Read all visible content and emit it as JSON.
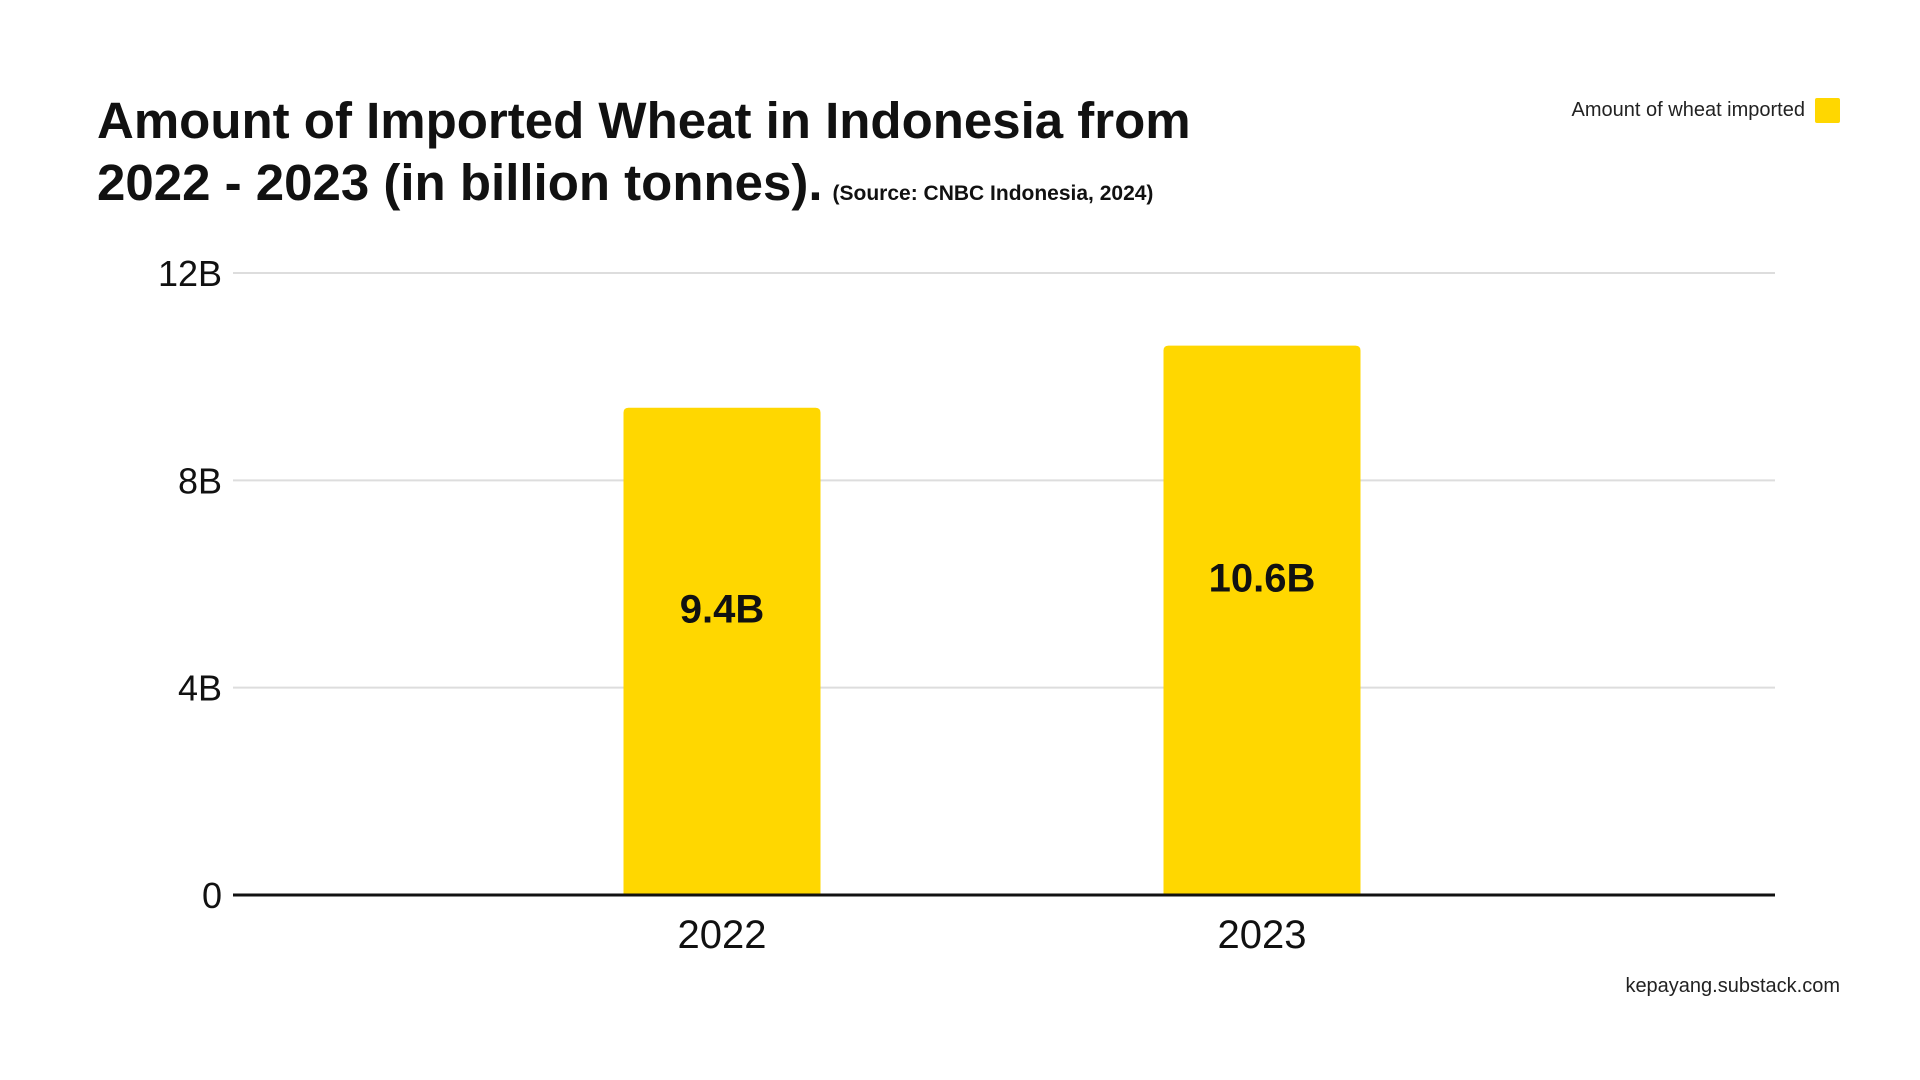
{
  "chart_data": {
    "type": "bar",
    "title": "Amount of Imported Wheat in Indonesia from 2022 - 2023 (in billion tonnes).",
    "title_line1": "Amount of Imported Wheat in Indonesia from",
    "title_line2": "2022 - 2023 (in billion tonnes).",
    "source": "(Source: CNBC Indonesia, 2024)",
    "categories": [
      "2022",
      "2023"
    ],
    "series": [
      {
        "name": "Amount of wheat imported",
        "values": [
          9.4,
          10.6
        ],
        "labels": [
          "9.4B",
          "10.6B"
        ],
        "color": "#FFD700"
      }
    ],
    "ylim": [
      0,
      12
    ],
    "yticks": [
      0,
      4,
      8,
      12
    ],
    "ytick_labels": [
      "0",
      "4B",
      "8B",
      "12B"
    ],
    "xlabel": "",
    "ylabel": "",
    "grid": true,
    "legend_position": "top-right"
  },
  "footer": "kepayang.substack.com",
  "colors": {
    "bar": "#FFD700",
    "grid": "#DDDDDD",
    "axis": "#111111",
    "text": "#111111"
  }
}
